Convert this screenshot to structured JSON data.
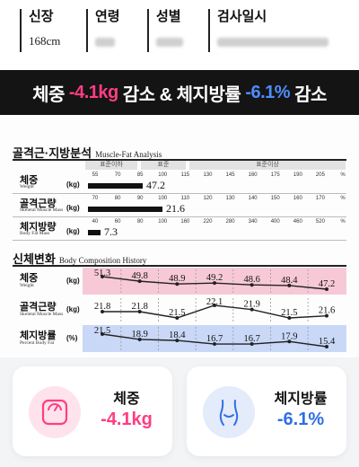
{
  "header": {
    "fields": [
      {
        "label": "신장",
        "value": "168cm"
      },
      {
        "label": "연령",
        "value": ""
      },
      {
        "label": "성별",
        "value": ""
      },
      {
        "label": "검사일시",
        "value": ""
      }
    ]
  },
  "banner": {
    "part1": "체중 ",
    "part2": "-4.1kg",
    "part3": " 감소 & 체지방률 ",
    "part4": "-6.1%",
    "part5": " 감소",
    "colors": {
      "pink": "#ff3d83",
      "blue": "#4d8dff"
    }
  },
  "muscle_fat": {
    "title": "골격근·지방분석",
    "title_en": "Muscle-Fat Analysis",
    "scale_labels": [
      "표준이하",
      "표준",
      "표준이상"
    ],
    "rows": [
      {
        "label": "체중",
        "label_en": "Weight",
        "unit": "(kg)",
        "ticks": [
          "55",
          "70",
          "85",
          "100",
          "115",
          "130",
          "145",
          "160",
          "175",
          "190",
          "205",
          "%"
        ],
        "value": "47.2",
        "fraction": 0.22
      },
      {
        "label": "골격근량",
        "label_en": "Skeletal Muscle Mass",
        "unit": "(kg)",
        "ticks": [
          "70",
          "80",
          "90",
          "100",
          "110",
          "120",
          "130",
          "140",
          "150",
          "160",
          "170",
          "%"
        ],
        "value": "21.6",
        "fraction": 0.3
      },
      {
        "label": "체지방량",
        "label_en": "Body Fat Mass",
        "unit": "(kg)",
        "ticks": [
          "40",
          "60",
          "80",
          "100",
          "160",
          "220",
          "280",
          "340",
          "400",
          "460",
          "520",
          "%"
        ],
        "value": "7.3",
        "fraction": 0.05
      }
    ]
  },
  "history": {
    "title": "신체변화",
    "title_en": "Body Composition History",
    "rows": [
      {
        "label": "체중",
        "label_en": "Weight",
        "unit": "(kg)",
        "band": "#f7c9d6",
        "values": [
          "51.3",
          "49.8",
          "48.9",
          "49.2",
          "48.6",
          "48.4",
          "47.2"
        ],
        "nums": [
          51.3,
          49.8,
          48.9,
          49.2,
          48.6,
          48.4,
          47.2
        ]
      },
      {
        "label": "골격근량",
        "label_en": "Skeletal Muscle Mass",
        "unit": "(kg)",
        "band": "",
        "values": [
          "21.8",
          "21.8",
          "21.5",
          "22.1",
          "21.9",
          "21.5",
          "21.6"
        ],
        "nums": [
          21.8,
          21.8,
          21.5,
          22.1,
          21.9,
          21.5,
          21.6
        ]
      },
      {
        "label": "체지방률",
        "label_en": "Percent Body Fat",
        "unit": "(%)",
        "band": "#c9d8f7",
        "values": [
          "21.5",
          "18.9",
          "18.4",
          "16.7",
          "16.7",
          "17.9",
          "15.4"
        ],
        "nums": [
          21.5,
          18.9,
          18.4,
          16.7,
          16.7,
          17.9,
          15.4
        ]
      }
    ]
  },
  "cards": [
    {
      "title": "체중",
      "value": "-4.1kg",
      "color": "#ff3d83",
      "circle": "#ffe3ec",
      "icon": "scale-icon"
    },
    {
      "title": "체지방률",
      "value": "-6.1%",
      "color": "#2f6fe6",
      "circle": "#e4ebfb",
      "icon": "body-waist-icon"
    }
  ]
}
